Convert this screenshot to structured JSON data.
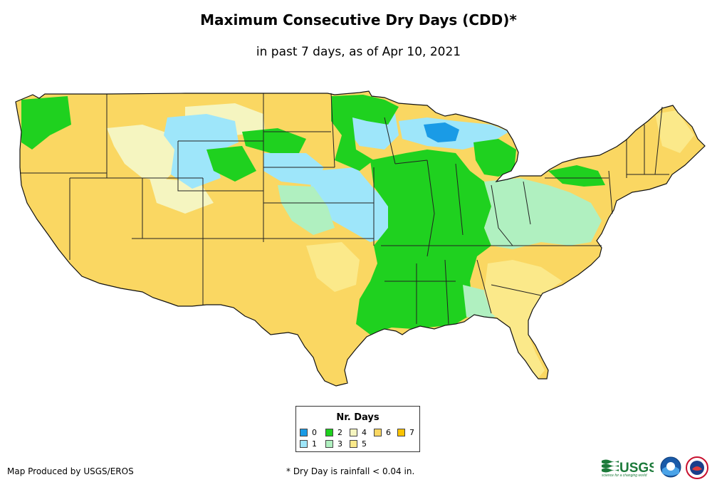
{
  "title": "Maximum Consecutive Dry Days (CDD)*",
  "subtitle": "in past 7 days, as of Apr 10, 2021",
  "legend": {
    "title": "Nr. Days",
    "items": [
      {
        "label": "0",
        "color": "#1a9be6"
      },
      {
        "label": "1",
        "color": "#9ee6fa"
      },
      {
        "label": "2",
        "color": "#1fd11f"
      },
      {
        "label": "3",
        "color": "#b0f0c0"
      },
      {
        "label": "4",
        "color": "#f5f5c0"
      },
      {
        "label": "5",
        "color": "#fbe98a"
      },
      {
        "label": "6",
        "color": "#fad762"
      },
      {
        "label": "7",
        "color": "#fbc300"
      }
    ]
  },
  "credit": "Map Produced by USGS/EROS",
  "footnote": "* Dry Day is rainfall < 0.04 in.",
  "logos": {
    "usgs_text": "USGS",
    "usgs_tagline": "science for a changing world"
  },
  "map": {
    "region": "Contiguous United States",
    "regions_by_days": [
      {
        "area": "Southwest, Great Basin, California, Texas, Rockies",
        "days": 6
      },
      {
        "area": "Mississippi Valley, Arkansas, Missouri, Illinois, Indiana",
        "days": 2
      },
      {
        "area": "Upper Great Plains, Iowa, Minnesota",
        "days": 1
      },
      {
        "area": "Upper Michigan",
        "days": 0
      },
      {
        "area": "Ohio Valley, Appalachians",
        "days": 3
      },
      {
        "area": "Southeast, Florida",
        "days": 5
      },
      {
        "area": "Northeast",
        "days": 6
      }
    ]
  }
}
